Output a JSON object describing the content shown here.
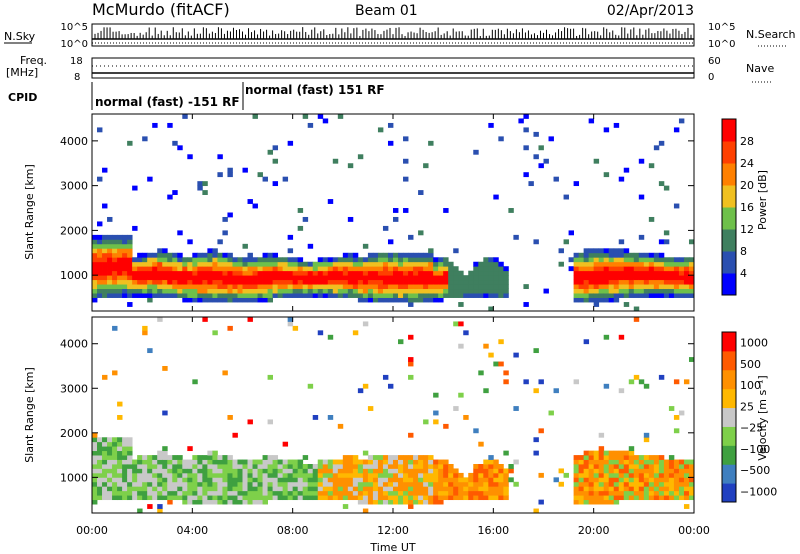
{
  "header": {
    "station": "McMurdo (fitACF)",
    "beam": "Beam 01",
    "date": "02/Apr/2013"
  },
  "summary_panels": {
    "noise": {
      "left_label": "N.Sky",
      "right_label": "N.Search",
      "left_ticks": [
        "10^5",
        "10^0"
      ],
      "right_ticks": [
        "10^5",
        "10^0"
      ]
    },
    "freq": {
      "left_label_line1": "Freq.",
      "left_label_line2": "[MHz]",
      "right_label": "Nave",
      "left_ticks": [
        "18",
        "8"
      ],
      "right_ticks": [
        "60",
        "0"
      ]
    },
    "cpid": {
      "label": "CPID",
      "segments": [
        {
          "label": "normal (fast) -151 RF",
          "start_hour": 0,
          "end_hour": 6
        },
        {
          "label": "normal (fast) 151 RF",
          "start_hour": 6,
          "end_hour": 24
        }
      ]
    }
  },
  "colors": {
    "power_scale": [
      "#0000ff",
      "#2a4fb0",
      "#3f7f5f",
      "#6ec04a",
      "#f0c020",
      "#ff8000",
      "#ff4000",
      "#ff0000"
    ],
    "velocity_scale": [
      "#ff0000",
      "#ff5a00",
      "#ff9000",
      "#ffb800",
      "#c8c8c8",
      "#7ed04a",
      "#3fa040",
      "#3f7fbf",
      "#2040c0"
    ]
  },
  "chart_data": [
    {
      "type": "heatmap",
      "name": "power",
      "ylabel": "Slant Range [km]",
      "yticks": [
        "1000",
        "2000",
        "3000",
        "4000"
      ],
      "ylim": [
        200,
        4600
      ],
      "xlim": [
        0,
        24
      ],
      "colorbar": {
        "label": "Power [dB]",
        "ticks": [
          "4",
          "8",
          "12",
          "16",
          "20",
          "24",
          "28"
        ],
        "range": [
          0,
          32
        ]
      }
    },
    {
      "type": "heatmap",
      "name": "velocity",
      "ylabel": "Slant Range [km]",
      "yticks": [
        "1000",
        "2000",
        "3000",
        "4000"
      ],
      "ylim": [
        200,
        4600
      ],
      "xlim": [
        0,
        24
      ],
      "xlabel": "Time UT",
      "xticks": [
        "00:00",
        "04:00",
        "08:00",
        "12:00",
        "16:00",
        "20:00",
        "00:00"
      ],
      "colorbar": {
        "label": "Velocity [m s⁻¹]",
        "ticks": [
          "1000",
          "500",
          "100",
          "25",
          "−25",
          "−100",
          "−500",
          "−1000"
        ]
      }
    }
  ]
}
